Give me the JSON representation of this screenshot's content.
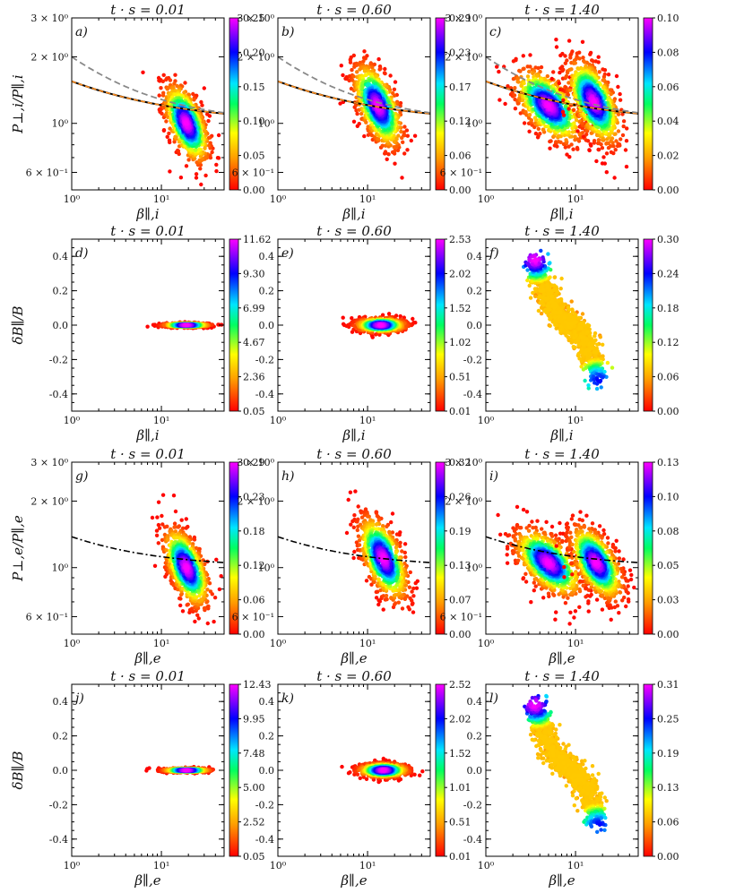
{
  "chart_data": [
    {
      "panel_label": "a)",
      "type": "scatter",
      "title": "t · s = 0.01",
      "xlabel": "β∥,i",
      "ylabel": "P⊥,i/P∥,i",
      "x_scale": "log",
      "y_scale": "log",
      "xlim": [
        1,
        50
      ],
      "ylim": [
        0.5,
        3
      ],
      "x_ticks": [
        "10⁰",
        "10¹"
      ],
      "y_ticks": [
        "3 × 10⁰",
        "2 × 10⁰",
        "10⁰",
        "6 × 10⁻¹"
      ],
      "colorbar_ticks": [
        "0.25",
        "0.20",
        "0.15",
        "0.10",
        "0.05",
        "0.00"
      ],
      "colorbar_range": [
        0,
        0.25
      ],
      "clusters": [
        {
          "center": [
            19,
            1.0
          ],
          "spread": [
            0.12,
            0.14
          ]
        }
      ],
      "curves": [
        "solid-black",
        "dashed-orange",
        "dashed-gray"
      ]
    },
    {
      "panel_label": "b)",
      "type": "scatter",
      "title": "t · s = 0.60",
      "xlabel": "β∥,i",
      "ylabel": "",
      "x_scale": "log",
      "y_scale": "log",
      "xlim": [
        1,
        50
      ],
      "ylim": [
        0.5,
        3
      ],
      "x_ticks": [
        "10⁰",
        "10¹"
      ],
      "y_ticks": [
        "3 × 10⁰",
        "2 × 10⁰",
        "10⁰",
        "6 × 10⁻¹"
      ],
      "colorbar_ticks": [
        "0.29",
        "0.23",
        "0.17",
        "0.12",
        "0.06",
        "0.00"
      ],
      "colorbar_range": [
        0,
        0.29
      ],
      "clusters": [
        {
          "center": [
            13,
            1.2
          ],
          "spread": [
            0.13,
            0.15
          ]
        }
      ],
      "curves": [
        "solid-black",
        "dashed-orange",
        "dashed-gray"
      ]
    },
    {
      "panel_label": "c)",
      "type": "scatter",
      "title": "t · s = 1.40",
      "xlabel": "β∥,i",
      "ylabel": "",
      "x_scale": "log",
      "y_scale": "log",
      "xlim": [
        1,
        50
      ],
      "ylim": [
        0.5,
        3
      ],
      "x_ticks": [
        "10⁰",
        "10¹"
      ],
      "y_ticks": [
        "3 × 10⁰",
        "2 × 10⁰",
        "10⁰",
        "6 × 10⁻¹"
      ],
      "colorbar_ticks": [
        "0.10",
        "0.08",
        "0.06",
        "0.04",
        "0.02",
        "0.00"
      ],
      "colorbar_range": [
        0,
        0.1
      ],
      "clusters": [
        {
          "center": [
            5,
            1.2
          ],
          "spread": [
            0.18,
            0.13
          ]
        },
        {
          "center": [
            16,
            1.25
          ],
          "spread": [
            0.14,
            0.15
          ]
        }
      ],
      "curves": [
        "solid-black",
        "dashed-orange",
        "dashed-gray"
      ]
    },
    {
      "panel_label": "d)",
      "type": "scatter",
      "title": "t · s = 0.01",
      "xlabel": "β∥,i",
      "ylabel": "δB∥/B",
      "x_scale": "log",
      "y_scale": "linear",
      "xlim": [
        1,
        50
      ],
      "ylim": [
        -0.5,
        0.5
      ],
      "x_ticks": [
        "10⁰",
        "10¹"
      ],
      "y_ticks": [
        "0.4",
        "0.2",
        "0.0",
        "-0.2",
        "-0.4"
      ],
      "colorbar_ticks": [
        "11.62",
        "9.30",
        "6.99",
        "4.67",
        "2.36",
        "0.05"
      ],
      "colorbar_range": [
        0.05,
        11.62
      ],
      "clusters": [
        {
          "center": [
            19,
            0.0
          ],
          "spread": [
            0.12,
            0.006
          ]
        }
      ],
      "curves": []
    },
    {
      "panel_label": "e)",
      "type": "scatter",
      "title": "t · s = 0.60",
      "xlabel": "β∥,i",
      "ylabel": "",
      "x_scale": "log",
      "y_scale": "linear",
      "xlim": [
        1,
        50
      ],
      "ylim": [
        -0.5,
        0.5
      ],
      "x_ticks": [
        "10⁰",
        "10¹"
      ],
      "y_ticks": [
        "0.4",
        "0.2",
        "0.0",
        "-0.2",
        "-0.4"
      ],
      "colorbar_ticks": [
        "2.53",
        "2.02",
        "1.52",
        "1.02",
        "0.51",
        "0.01"
      ],
      "colorbar_range": [
        0.01,
        2.53
      ],
      "clusters": [
        {
          "center": [
            14,
            0.0
          ],
          "spread": [
            0.13,
            0.02
          ]
        }
      ],
      "curves": []
    },
    {
      "panel_label": "f)",
      "type": "scatter",
      "title": "t · s = 1.40",
      "xlabel": "β∥,i",
      "ylabel": "",
      "x_scale": "log",
      "y_scale": "linear",
      "xlim": [
        1,
        50
      ],
      "ylim": [
        -0.5,
        0.5
      ],
      "x_ticks": [
        "10⁰",
        "10¹"
      ],
      "y_ticks": [
        "0.4",
        "0.2",
        "0.0",
        "-0.2",
        "-0.4"
      ],
      "colorbar_ticks": [
        "0.30",
        "0.24",
        "0.18",
        "0.12",
        "0.06",
        "0.00"
      ],
      "colorbar_range": [
        0,
        0.3
      ],
      "clusters": [
        {
          "band_from": [
            3.5,
            0.38
          ],
          "band_to": [
            18,
            -0.32
          ]
        }
      ],
      "curves": []
    },
    {
      "panel_label": "g)",
      "type": "scatter",
      "title": "t · s = 0.01",
      "xlabel": "β∥,e",
      "ylabel": "P⊥,e/P∥,e",
      "x_scale": "log",
      "y_scale": "log",
      "xlim": [
        1,
        50
      ],
      "ylim": [
        0.5,
        3
      ],
      "x_ticks": [
        "10⁰",
        "10¹"
      ],
      "y_ticks": [
        "3 × 10⁰",
        "2 × 10⁰",
        "10⁰",
        "6 × 10⁻¹"
      ],
      "colorbar_ticks": [
        "0.29",
        "0.23",
        "0.18",
        "0.12",
        "0.06",
        "0.00"
      ],
      "colorbar_range": [
        0,
        0.29
      ],
      "clusters": [
        {
          "center": [
            19,
            1.0
          ],
          "spread": [
            0.12,
            0.14
          ]
        }
      ],
      "curves": [
        "dashdot-black"
      ]
    },
    {
      "panel_label": "h)",
      "type": "scatter",
      "title": "t · s = 0.60",
      "xlabel": "β∥,e",
      "ylabel": "",
      "x_scale": "log",
      "y_scale": "log",
      "xlim": [
        1,
        50
      ],
      "ylim": [
        0.5,
        3
      ],
      "x_ticks": [
        "10⁰",
        "10¹"
      ],
      "y_ticks": [
        "3 × 10⁰",
        "2 × 10⁰",
        "10⁰",
        "6 × 10⁻¹"
      ],
      "colorbar_ticks": [
        "0.32",
        "0.26",
        "0.19",
        "0.13",
        "0.07",
        "0.00"
      ],
      "colorbar_range": [
        0,
        0.32
      ],
      "clusters": [
        {
          "center": [
            15,
            1.1
          ],
          "spread": [
            0.13,
            0.15
          ]
        }
      ],
      "curves": [
        "dashdot-black"
      ]
    },
    {
      "panel_label": "i)",
      "type": "scatter",
      "title": "t · s = 1.40",
      "xlabel": "β∥,e",
      "ylabel": "",
      "x_scale": "log",
      "y_scale": "log",
      "xlim": [
        1,
        50
      ],
      "ylim": [
        0.5,
        3
      ],
      "x_ticks": [
        "10⁰",
        "10¹"
      ],
      "y_ticks": [
        "3 × 10⁰",
        "2 × 10⁰",
        "10⁰",
        "6 × 10⁻¹"
      ],
      "colorbar_ticks": [
        "0.13",
        "0.10",
        "0.08",
        "0.05",
        "0.03",
        "0.00"
      ],
      "colorbar_range": [
        0,
        0.13
      ],
      "clusters": [
        {
          "center": [
            5,
            1.05
          ],
          "spread": [
            0.18,
            0.12
          ]
        },
        {
          "center": [
            17,
            1.05
          ],
          "spread": [
            0.14,
            0.13
          ]
        }
      ],
      "curves": [
        "dashdot-black"
      ]
    },
    {
      "panel_label": "j)",
      "type": "scatter",
      "title": "t · s = 0.01",
      "xlabel": "β∥,e",
      "ylabel": "δB∥/B",
      "x_scale": "log",
      "y_scale": "linear",
      "xlim": [
        1,
        50
      ],
      "ylim": [
        -0.5,
        0.5
      ],
      "x_ticks": [
        "10⁰",
        "10¹"
      ],
      "y_ticks": [
        "0.4",
        "0.2",
        "0.0",
        "-0.2",
        "-0.4"
      ],
      "colorbar_ticks": [
        "12.43",
        "9.95",
        "7.48",
        "5.00",
        "2.52",
        "0.05"
      ],
      "colorbar_range": [
        0.05,
        12.43
      ],
      "clusters": [
        {
          "center": [
            19,
            0.0
          ],
          "spread": [
            0.12,
            0.006
          ]
        }
      ],
      "curves": []
    },
    {
      "panel_label": "k)",
      "type": "scatter",
      "title": "t · s = 0.60",
      "xlabel": "β∥,e",
      "ylabel": "",
      "x_scale": "log",
      "y_scale": "linear",
      "xlim": [
        1,
        50
      ],
      "ylim": [
        -0.5,
        0.5
      ],
      "x_ticks": [
        "10⁰",
        "10¹"
      ],
      "y_ticks": [
        "0.4",
        "0.2",
        "0.0",
        "-0.2",
        "-0.4"
      ],
      "colorbar_ticks": [
        "2.52",
        "2.02",
        "1.52",
        "1.01",
        "0.51",
        "0.01"
      ],
      "colorbar_range": [
        0.01,
        2.52
      ],
      "clusters": [
        {
          "center": [
            15,
            0.0
          ],
          "spread": [
            0.13,
            0.02
          ]
        }
      ],
      "curves": []
    },
    {
      "panel_label": "l)",
      "type": "scatter",
      "title": "t · s = 1.40",
      "xlabel": "β∥,e",
      "ylabel": "",
      "x_scale": "log",
      "y_scale": "linear",
      "xlim": [
        1,
        50
      ],
      "ylim": [
        -0.5,
        0.5
      ],
      "x_ticks": [
        "10⁰",
        "10¹"
      ],
      "y_ticks": [
        "0.4",
        "0.2",
        "0.0",
        "-0.2",
        "-0.4"
      ],
      "colorbar_ticks": [
        "0.31",
        "0.25",
        "0.19",
        "0.13",
        "0.06",
        "0.00"
      ],
      "colorbar_range": [
        0,
        0.31
      ],
      "clusters": [
        {
          "band_from": [
            3.5,
            0.38
          ],
          "band_to": [
            18,
            -0.32
          ]
        }
      ],
      "curves": []
    }
  ]
}
